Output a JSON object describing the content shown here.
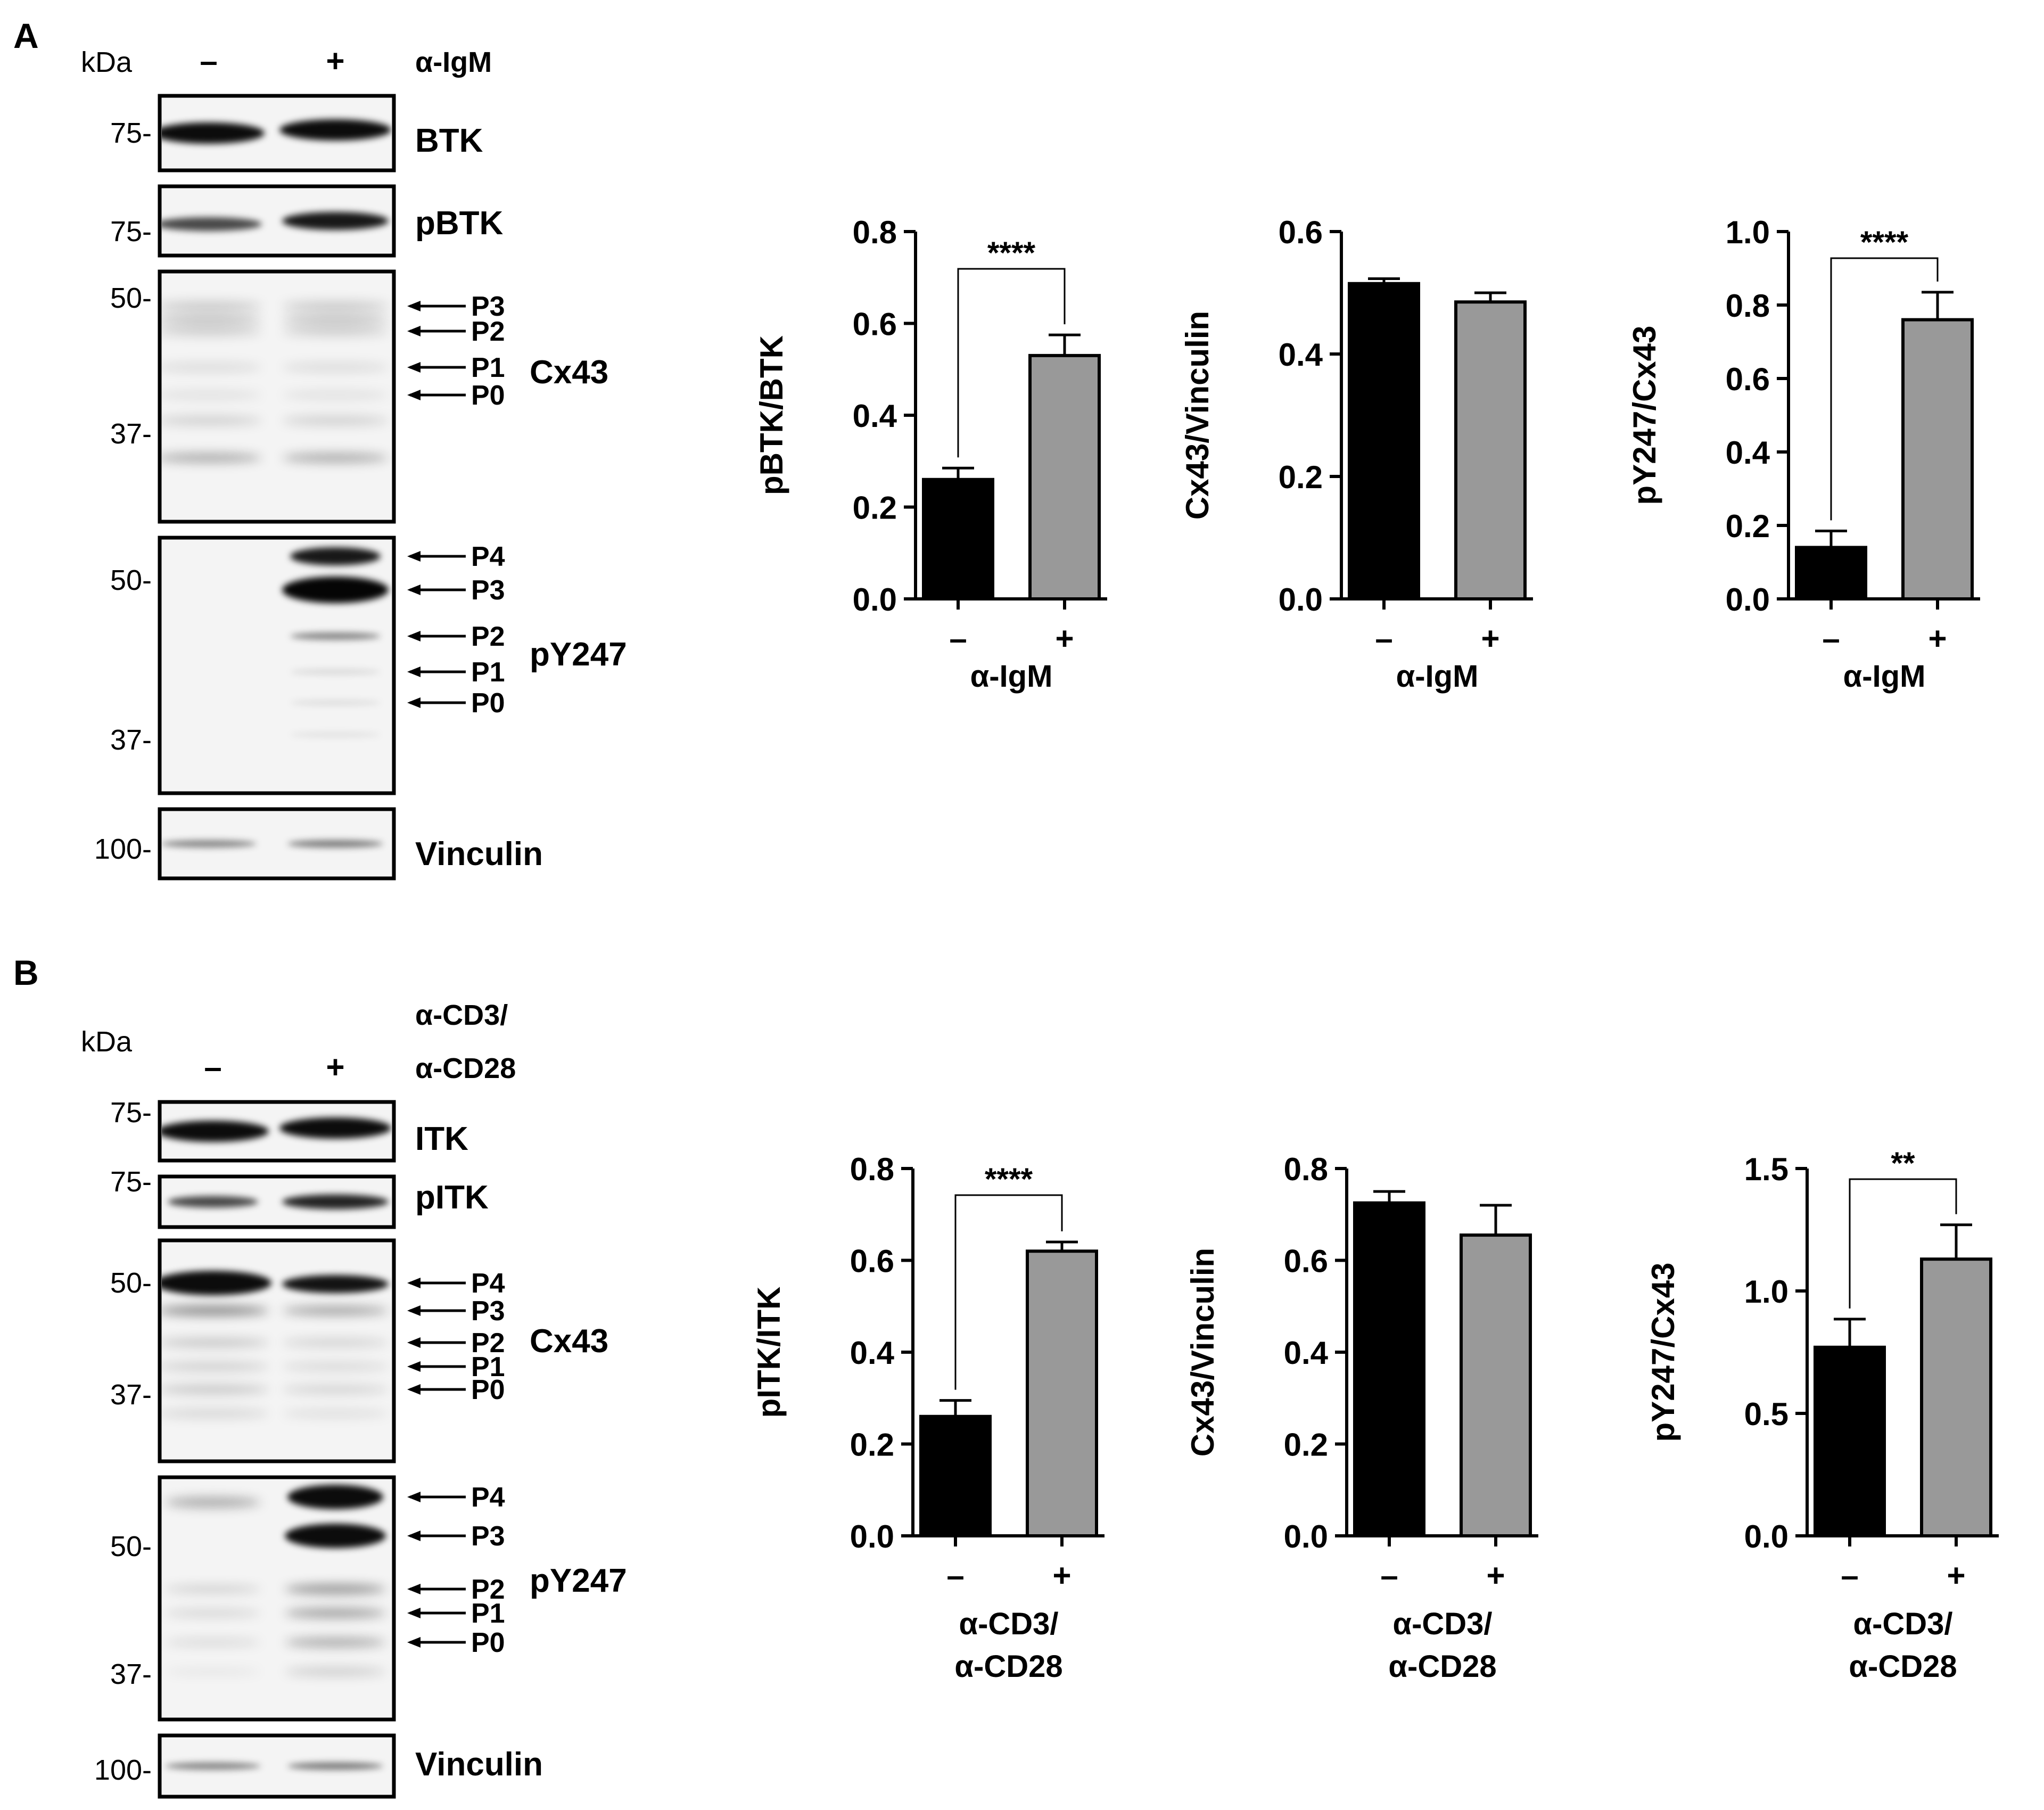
{
  "panels": [
    {
      "letter": "A",
      "blot": {
        "kda_label": "kDa",
        "treatment_lines": [
          "α-IgM"
        ],
        "lane_labels": [
          "–",
          "+"
        ],
        "strips": [
          {
            "name": "BTK",
            "markers": [
              "75-"
            ],
            "bands": [
              {
                "kind": "strong"
              }
            ],
            "arrows": []
          },
          {
            "name": "pBTK",
            "markers": [
              "75-"
            ],
            "bands": [
              {
                "kind": "pbtk"
              }
            ],
            "arrows": []
          },
          {
            "name": "Cx43",
            "markers": [
              "50-",
              "37-"
            ],
            "bands": [
              {
                "kind": "cx43a"
              }
            ],
            "arrows": [
              "P3",
              "P2",
              "P1",
              "P0"
            ]
          },
          {
            "name": "pY247",
            "markers": [
              "50-",
              "37-"
            ],
            "bands": [
              {
                "kind": "py247a"
              }
            ],
            "arrows": [
              "P4",
              "P3",
              "P2",
              "P1",
              "P0"
            ]
          },
          {
            "name": "Vinculin",
            "markers": [
              "100-"
            ],
            "bands": [
              {
                "kind": "vinc"
              }
            ],
            "arrows": []
          }
        ]
      },
      "charts": [
        {
          "ylabel": "pBTK/BTK",
          "ylim": [
            0,
            0.8
          ],
          "ticks": [
            "0.0",
            "0.2",
            "0.4",
            "0.6",
            "0.8"
          ],
          "categories": [
            "–",
            "+"
          ],
          "values": [
            0.26,
            0.53
          ],
          "errors": [
            0.025,
            0.045
          ],
          "colors": [
            "#000000",
            "#999999"
          ],
          "xlabel": [
            "α-IgM"
          ],
          "significance": "****"
        },
        {
          "ylabel": "Cx43/Vinculin",
          "ylim": [
            0,
            0.6
          ],
          "ticks": [
            "0.0",
            "0.2",
            "0.4",
            "0.6"
          ],
          "categories": [
            "–",
            "+"
          ],
          "values": [
            0.515,
            0.485
          ],
          "errors": [
            0.008,
            0.015
          ],
          "colors": [
            "#000000",
            "#999999"
          ],
          "xlabel": [
            "α-IgM"
          ],
          "significance": ""
        },
        {
          "ylabel": "pY247/Cx43",
          "ylim": [
            0,
            1.0
          ],
          "ticks": [
            "0.0",
            "0.2",
            "0.4",
            "0.6",
            "0.8",
            "1.0"
          ],
          "categories": [
            "–",
            "+"
          ],
          "values": [
            0.14,
            0.76
          ],
          "errors": [
            0.045,
            0.075
          ],
          "colors": [
            "#000000",
            "#999999"
          ],
          "xlabel": [
            "α-IgM"
          ],
          "significance": "****"
        }
      ]
    },
    {
      "letter": "B",
      "blot": {
        "kda_label": "kDa",
        "treatment_lines": [
          "α-CD3/",
          "α-CD28"
        ],
        "lane_labels": [
          "–",
          "+"
        ],
        "strips": [
          {
            "name": "ITK",
            "markers": [
              "75-"
            ],
            "bands": [
              {
                "kind": "strong"
              }
            ],
            "arrows": []
          },
          {
            "name": "pITK",
            "markers": [
              "75-"
            ],
            "bands": [
              {
                "kind": "pitk"
              }
            ],
            "arrows": []
          },
          {
            "name": "Cx43",
            "markers": [
              "50-",
              "37-"
            ],
            "bands": [
              {
                "kind": "cx43b"
              }
            ],
            "arrows": [
              "P4",
              "P3",
              "P2",
              "P1",
              "P0"
            ]
          },
          {
            "name": "pY247",
            "markers": [
              "50-",
              "37-"
            ],
            "bands": [
              {
                "kind": "py247b"
              }
            ],
            "arrows": [
              "P4",
              "P3",
              "P2",
              "P1",
              "P0"
            ]
          },
          {
            "name": "Vinculin",
            "markers": [
              "100-"
            ],
            "bands": [
              {
                "kind": "vinc"
              }
            ],
            "arrows": []
          }
        ]
      },
      "charts": [
        {
          "ylabel": "pITK/ITK",
          "ylim": [
            0,
            0.8
          ],
          "ticks": [
            "0.0",
            "0.2",
            "0.4",
            "0.6",
            "0.8"
          ],
          "categories": [
            "–",
            "+"
          ],
          "values": [
            0.26,
            0.62
          ],
          "errors": [
            0.035,
            0.02
          ],
          "colors": [
            "#000000",
            "#999999"
          ],
          "xlabel": [
            "α-CD3/",
            "α-CD28"
          ],
          "significance": "****"
        },
        {
          "ylabel": "Cx43/Vinculin",
          "ylim": [
            0,
            0.8
          ],
          "ticks": [
            "0.0",
            "0.2",
            "0.4",
            "0.6",
            "0.8"
          ],
          "categories": [
            "–",
            "+"
          ],
          "values": [
            0.725,
            0.655
          ],
          "errors": [
            0.025,
            0.065
          ],
          "colors": [
            "#000000",
            "#999999"
          ],
          "xlabel": [
            "α-CD3/",
            "α-CD28"
          ],
          "significance": ""
        },
        {
          "ylabel": "pY247/Cx43",
          "ylim": [
            0,
            1.5
          ],
          "ticks": [
            "0.0",
            "0.5",
            "1.0",
            "1.5"
          ],
          "categories": [
            "–",
            "+"
          ],
          "values": [
            0.77,
            1.13
          ],
          "errors": [
            0.115,
            0.14
          ],
          "colors": [
            "#000000",
            "#999999"
          ],
          "xlabel": [
            "α-CD3/",
            "α-CD28"
          ],
          "significance": "**"
        }
      ]
    }
  ],
  "chart_data": [
    {
      "type": "bar",
      "title": "",
      "panel": "A",
      "categories": [
        "–",
        "+"
      ],
      "values": [
        0.26,
        0.53
      ],
      "error_bars": [
        0.025,
        0.045
      ],
      "xlabel": "α-IgM",
      "ylabel": "pBTK/BTK",
      "ylim": [
        0,
        0.8
      ],
      "significance": "****"
    },
    {
      "type": "bar",
      "title": "",
      "panel": "A",
      "categories": [
        "–",
        "+"
      ],
      "values": [
        0.515,
        0.485
      ],
      "error_bars": [
        0.008,
        0.015
      ],
      "xlabel": "α-IgM",
      "ylabel": "Cx43/Vinculin",
      "ylim": [
        0,
        0.6
      ]
    },
    {
      "type": "bar",
      "title": "",
      "panel": "A",
      "categories": [
        "–",
        "+"
      ],
      "values": [
        0.14,
        0.76
      ],
      "error_bars": [
        0.045,
        0.075
      ],
      "xlabel": "α-IgM",
      "ylabel": "pY247/Cx43",
      "ylim": [
        0,
        1.0
      ],
      "significance": "****"
    },
    {
      "type": "bar",
      "title": "",
      "panel": "B",
      "categories": [
        "–",
        "+"
      ],
      "values": [
        0.26,
        0.62
      ],
      "error_bars": [
        0.035,
        0.02
      ],
      "xlabel": "α-CD3/ α-CD28",
      "ylabel": "pITK/ITK",
      "ylim": [
        0,
        0.8
      ],
      "significance": "****"
    },
    {
      "type": "bar",
      "title": "",
      "panel": "B",
      "categories": [
        "–",
        "+"
      ],
      "values": [
        0.725,
        0.655
      ],
      "error_bars": [
        0.025,
        0.065
      ],
      "xlabel": "α-CD3/ α-CD28",
      "ylabel": "Cx43/Vinculin",
      "ylim": [
        0,
        0.8
      ]
    },
    {
      "type": "bar",
      "title": "",
      "panel": "B",
      "categories": [
        "–",
        "+"
      ],
      "values": [
        0.77,
        1.13
      ],
      "error_bars": [
        0.115,
        0.14
      ],
      "xlabel": "α-CD3/ α-CD28",
      "ylabel": "pY247/Cx43",
      "ylim": [
        0,
        1.5
      ],
      "significance": "**"
    }
  ]
}
